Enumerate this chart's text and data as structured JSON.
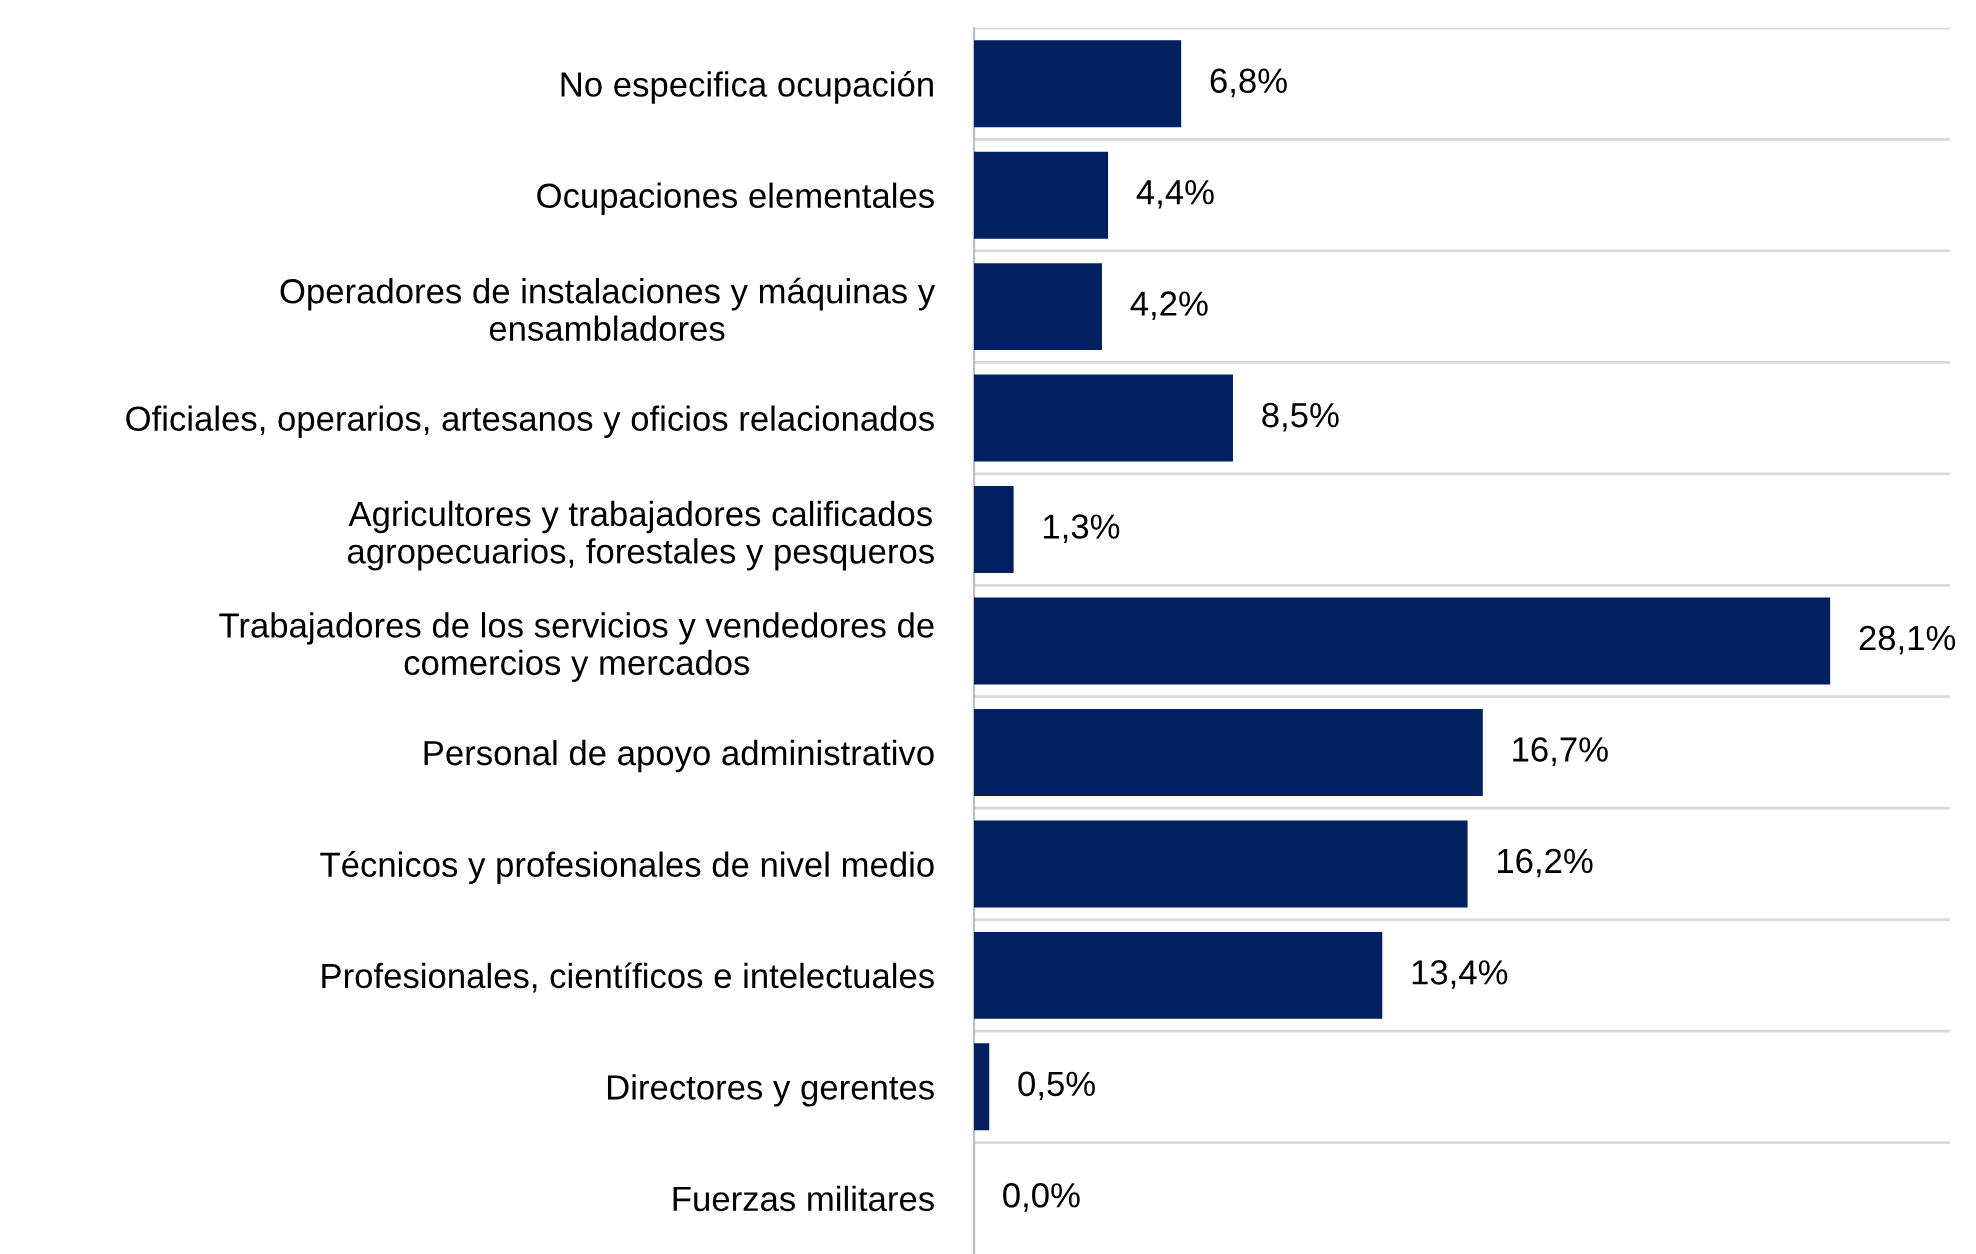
{
  "chart_data": {
    "type": "bar",
    "orientation": "horizontal",
    "grid": "y",
    "legend": false,
    "categories": [
      "No especifica ocupación",
      "Ocupaciones elementales",
      "Operadores de instalaciones y máquinas y\nensambladores",
      "Oficiales, operarios, artesanos y oficios relacionados",
      "Agricultores y trabajadores calificados\nagropecuarios, forestales y pesqueros",
      "Trabajadores de los servicios y vendedores de\ncomercios y mercados",
      "Personal de apoyo administrativo",
      "Técnicos y profesionales de nivel medio",
      "Profesionales, científicos e intelectuales",
      "Directores y gerentes",
      "Fuerzas militares"
    ],
    "values": [
      6.8,
      4.4,
      4.2,
      8.5,
      1.3,
      28.1,
      16.7,
      16.2,
      13.4,
      0.5,
      0.0
    ],
    "value_labels": [
      "6,8%",
      "4,4%",
      "4,2%",
      "8,5%",
      "1,3%",
      "28,1%",
      "16,7%",
      "16,2%",
      "13,4%",
      "0,5%",
      "0,0%"
    ],
    "color": "#002060"
  }
}
